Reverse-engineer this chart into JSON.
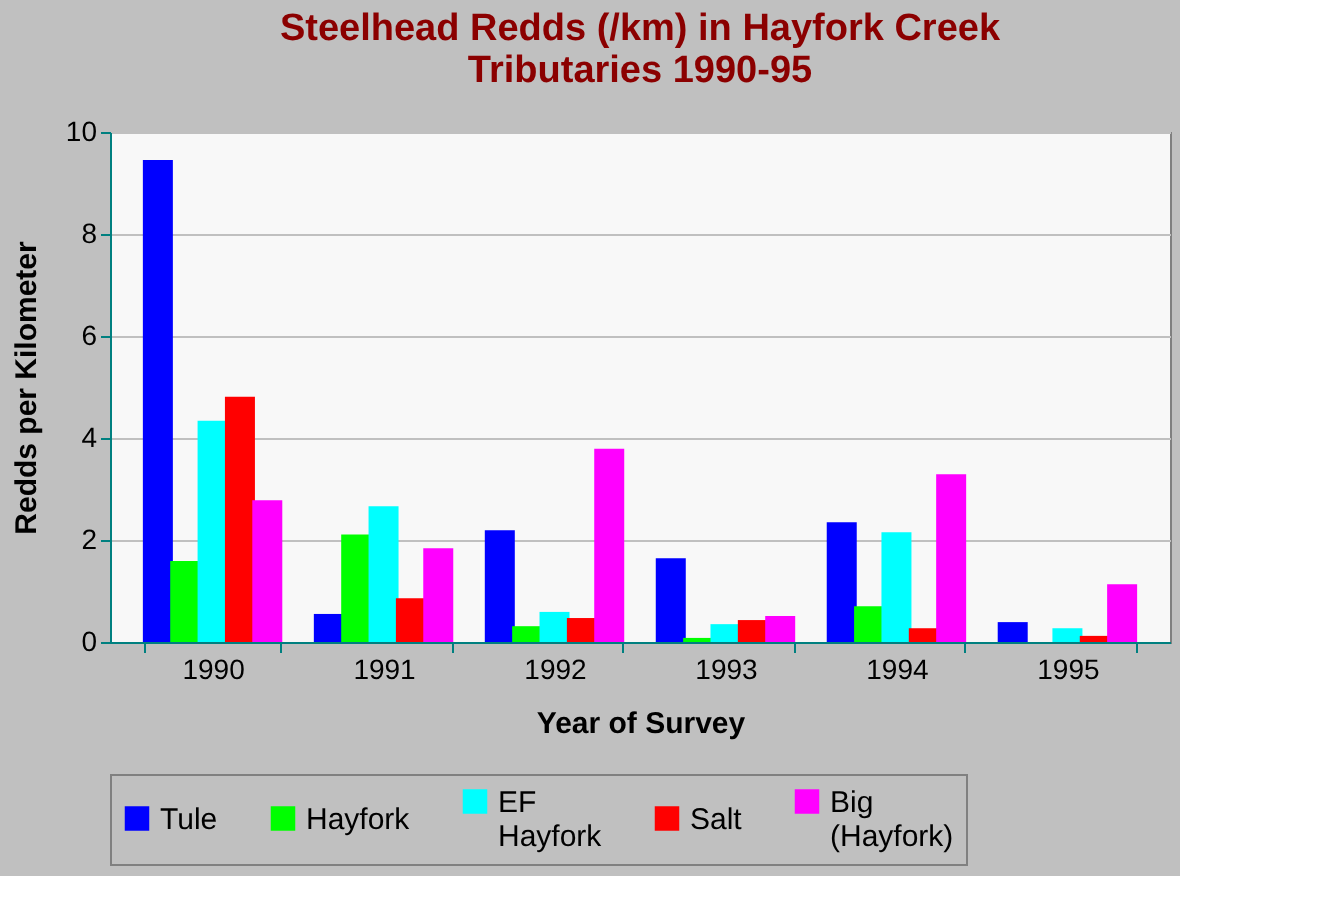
{
  "chart_data": {
    "type": "bar",
    "title": "Steelhead Redds (/km) in Hayfork Creek Tributaries 1990-95",
    "xlabel": "Year of Survey",
    "ylabel": "Redds per Kilometer",
    "categories": [
      "1990",
      "1991",
      "1992",
      "1993",
      "1994",
      "1995"
    ],
    "series": [
      {
        "name": "Tule",
        "color": "#0000ff",
        "values": [
          9.45,
          0.55,
          2.19,
          1.64,
          2.35,
          0.39
        ]
      },
      {
        "name": "Hayfork",
        "color": "#00ff00",
        "values": [
          1.59,
          2.11,
          0.31,
          0.08,
          0.7,
          0
        ]
      },
      {
        "name": "EF Hayfork",
        "color": "#00ffff",
        "values": [
          4.34,
          2.66,
          0.59,
          0.35,
          2.15,
          0.27
        ]
      },
      {
        "name": "Salt",
        "color": "#ff0000",
        "values": [
          4.81,
          0.86,
          0.47,
          0.43,
          0.27,
          0.12
        ]
      },
      {
        "name": "Big (Hayfork)",
        "color": "#ff00ff",
        "values": [
          2.78,
          1.84,
          3.79,
          0.51,
          3.29,
          1.13
        ]
      }
    ],
    "ylim": [
      0,
      10
    ],
    "yticks": [
      0,
      2,
      4,
      6,
      8,
      10
    ],
    "grid": "y",
    "legend": "bottom"
  }
}
